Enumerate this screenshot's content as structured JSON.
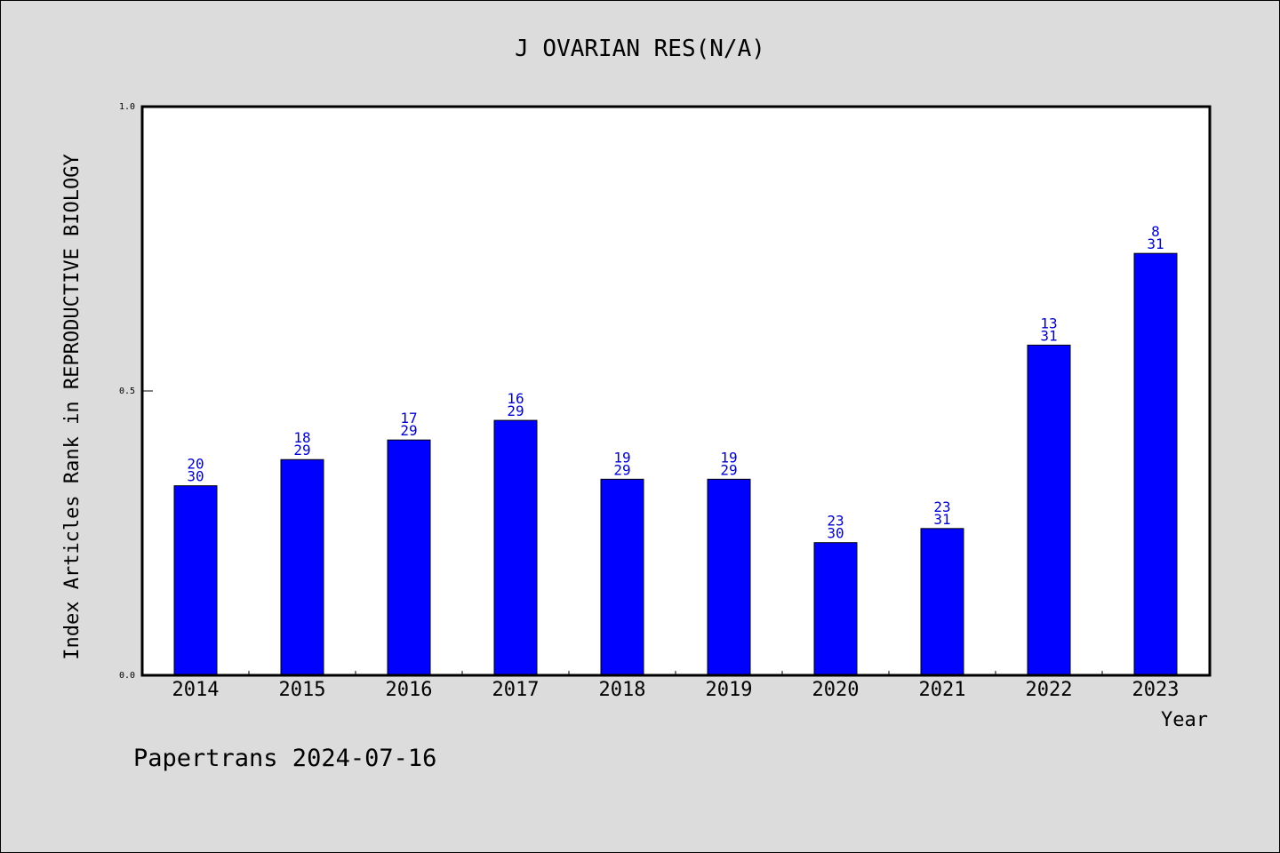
{
  "chart_data": {
    "type": "bar",
    "title": "J OVARIAN RES(N/A)",
    "xlabel": "Year",
    "ylabel": "Index Articles Rank in REPRODUCTIVE BIOLOGY",
    "categories": [
      "2014",
      "2015",
      "2016",
      "2017",
      "2018",
      "2019",
      "2020",
      "2021",
      "2022",
      "2023"
    ],
    "values": [
      0.3333,
      0.3793,
      0.4138,
      0.4483,
      0.3448,
      0.3448,
      0.2333,
      0.2581,
      0.5806,
      0.7419
    ],
    "rank_labels": [
      [
        "20",
        "30"
      ],
      [
        "18",
        "29"
      ],
      [
        "17",
        "29"
      ],
      [
        "16",
        "29"
      ],
      [
        "19",
        "29"
      ],
      [
        "19",
        "29"
      ],
      [
        "23",
        "30"
      ],
      [
        "23",
        "31"
      ],
      [
        "13",
        "31"
      ],
      [
        "8",
        "31"
      ]
    ],
    "yticks": [
      "0.0",
      "0.5",
      "1.0"
    ],
    "ylim": [
      0,
      1
    ],
    "bar_color": "#0000ff",
    "label_color": "#0000cc",
    "grid": false,
    "legend": "none"
  },
  "footer": "Papertrans 2024-07-16"
}
